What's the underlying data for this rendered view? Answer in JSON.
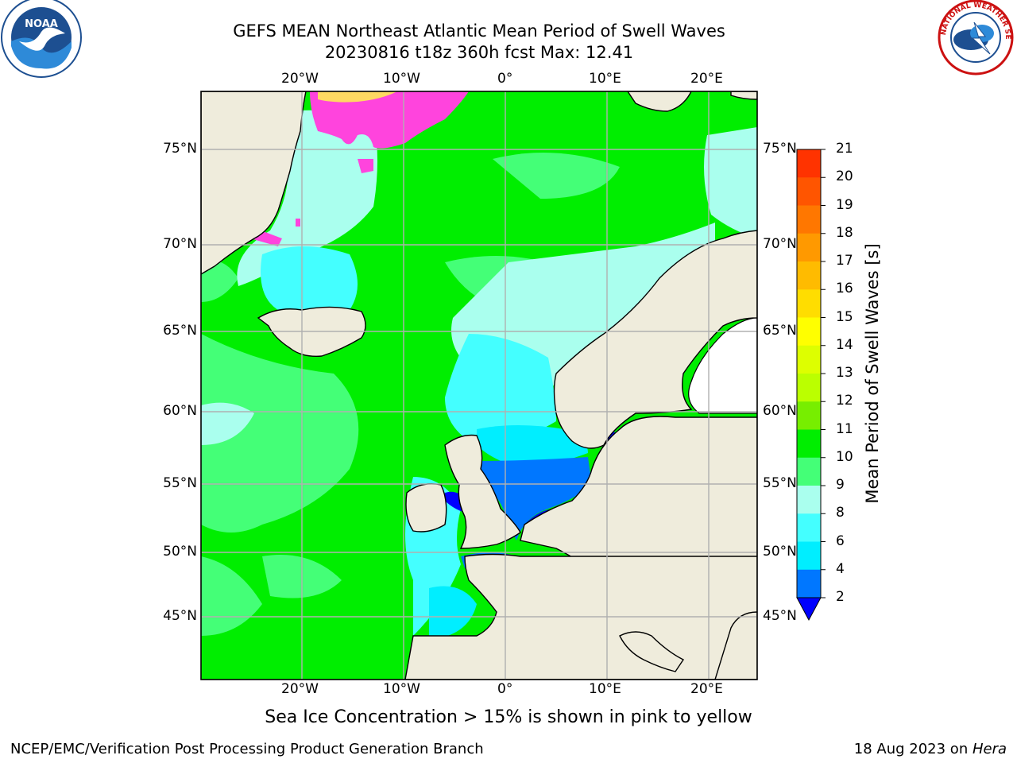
{
  "header": {
    "title": "GEFS MEAN Northeast Atlantic Mean Period of Swell Waves",
    "subtitle": "20230816 t18z 360h fcst   Max: 12.41"
  },
  "logos": {
    "noaa_text": "NOAA",
    "noaa_ring": "NATIONAL OCEANIC AND ATMOSPHERIC ADMINISTRATION · U.S. DEPARTMENT OF COMMERCE",
    "nws_ring": "NATIONAL WEATHER SERVICE"
  },
  "map": {
    "lat_labels": [
      "75°N",
      "70°N",
      "65°N",
      "60°N",
      "55°N",
      "50°N",
      "45°N"
    ],
    "lon_labels": [
      "20°W",
      "10°W",
      "0°",
      "10°E",
      "20°E"
    ],
    "land_color": "#efecdc",
    "ocean_colors": {
      "long_swell": "#00ee00",
      "mid_swell": "#44ff77",
      "short_swell": "#88ffff",
      "shorter_swell": "#00eeff",
      "very_short": "#0077ff",
      "minimal": "#0000ff",
      "ice_pink": "#ff44dd",
      "ice_yellow": "#ffff44"
    }
  },
  "colorbar": {
    "label": "Mean Period of Swell Waves [s]",
    "ticks": [
      "21",
      "20",
      "19",
      "18",
      "17",
      "16",
      "15",
      "14",
      "13",
      "12",
      "11",
      "10",
      "9",
      "8",
      "6",
      "4",
      "2"
    ],
    "colors": [
      "#ff0000",
      "#ff3300",
      "#ff5500",
      "#ff7700",
      "#ff9900",
      "#ffbb00",
      "#ffdd00",
      "#ffff00",
      "#ddff00",
      "#bbff00",
      "#77ee00",
      "#00ee00",
      "#44ff77",
      "#aaffee",
      "#44ffff",
      "#00eeff",
      "#0077ff",
      "#0000ff"
    ]
  },
  "caption": "Sea Ice Concentration > 15% is shown in pink to yellow",
  "footer": {
    "left": "NCEP/EMC/Verification Post Processing Product Generation Branch",
    "date": "18 Aug 2023 on ",
    "host": "Hera"
  }
}
